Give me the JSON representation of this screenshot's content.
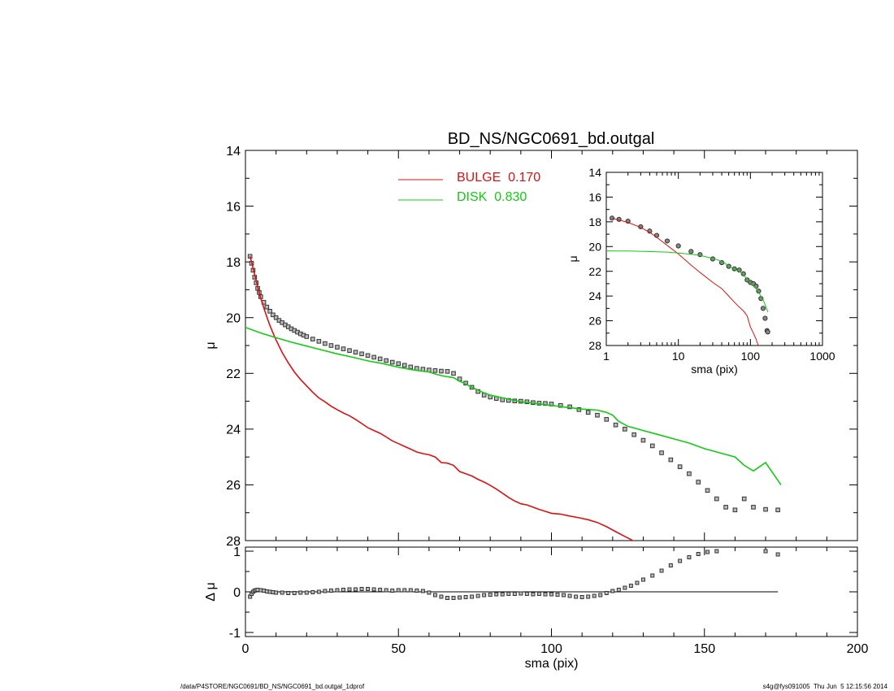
{
  "title": "BD_NS/NGC0691_bd.outgal",
  "footer": {
    "path": "/data/P4STORE/NGC0691/BD_NS/NGC0691_bd.outgal_1dprof",
    "stamp": "s4g@fys091005  Thu Jun  5 12:15:56 2014"
  },
  "colors": {
    "bulge": "#dd1111",
    "disk": "#11cc11",
    "data": "#333333",
    "axes": "#000000"
  },
  "chart_data": [
    {
      "id": "main",
      "type": "line",
      "xlabel": "",
      "ylabel": "μ",
      "xlim": [
        0,
        200
      ],
      "ylim": [
        28,
        14
      ],
      "xticks": [
        0,
        50,
        100,
        150,
        200
      ],
      "yticks": [
        14,
        16,
        18,
        20,
        22,
        24,
        26,
        28
      ],
      "legend": {
        "placement": "top-center",
        "entries": [
          {
            "label": "BULGE  0.170",
            "color": "#dd1111"
          },
          {
            "label": "DISK  0.830",
            "color": "#11cc11"
          }
        ]
      },
      "series": [
        {
          "name": "data",
          "style": "points",
          "x": [
            1.5,
            2,
            2.5,
            3,
            3.5,
            4,
            4.5,
            5,
            6,
            7,
            8,
            9,
            10,
            11,
            12,
            13,
            14,
            15,
            16,
            17,
            18,
            19,
            20,
            22,
            24,
            26,
            28,
            30,
            32,
            34,
            36,
            38,
            40,
            42,
            44,
            46,
            48,
            50,
            52,
            54,
            56,
            58,
            60,
            62,
            64,
            66,
            68,
            70,
            72,
            74,
            76,
            78,
            80,
            82,
            84,
            86,
            88,
            90,
            92,
            94,
            96,
            98,
            100,
            103,
            106,
            109,
            112,
            115,
            118,
            121,
            124,
            127,
            130,
            133,
            136,
            139,
            142,
            145,
            148,
            151,
            154,
            157,
            160,
            163,
            166,
            170,
            174
          ],
          "y": [
            17.8,
            18.05,
            18.3,
            18.55,
            18.75,
            18.95,
            19.1,
            19.25,
            19.45,
            19.62,
            19.77,
            19.9,
            20.0,
            20.1,
            20.18,
            20.26,
            20.33,
            20.4,
            20.46,
            20.52,
            20.58,
            20.63,
            20.68,
            20.77,
            20.85,
            20.93,
            21.0,
            21.06,
            21.12,
            21.18,
            21.24,
            21.3,
            21.36,
            21.42,
            21.48,
            21.54,
            21.6,
            21.65,
            21.71,
            21.77,
            21.82,
            21.85,
            21.88,
            21.9,
            21.92,
            21.93,
            22.0,
            22.2,
            22.35,
            22.5,
            22.65,
            22.78,
            22.85,
            22.9,
            22.95,
            22.97,
            22.99,
            23.0,
            23.02,
            23.05,
            23.07,
            23.08,
            23.1,
            23.15,
            23.2,
            23.3,
            23.4,
            23.5,
            23.65,
            23.85,
            24.0,
            24.2,
            24.4,
            24.6,
            24.85,
            25.1,
            25.35,
            25.6,
            25.9,
            26.2,
            26.5,
            26.8,
            26.9,
            26.5,
            26.8,
            26.88,
            26.9
          ]
        },
        {
          "name": "BULGE",
          "style": "line",
          "x": [
            1.5,
            2,
            3,
            4,
            5,
            6,
            7,
            8,
            9,
            10,
            12,
            14,
            16,
            18,
            20,
            22,
            24,
            26,
            28,
            30,
            32,
            34,
            36,
            38,
            40,
            42,
            44,
            46,
            48,
            50,
            52,
            54,
            56,
            58,
            60,
            62,
            64,
            66,
            68,
            70,
            72,
            74,
            76,
            78,
            80,
            82,
            84,
            86,
            88,
            90,
            92,
            94,
            96,
            98,
            100,
            103,
            106,
            109,
            112,
            115,
            118,
            121,
            124,
            127,
            130
          ],
          "y": [
            17.8,
            18.0,
            18.45,
            18.9,
            19.3,
            19.65,
            19.98,
            20.28,
            20.55,
            20.8,
            21.25,
            21.62,
            21.95,
            22.22,
            22.45,
            22.68,
            22.88,
            23.02,
            23.18,
            23.3,
            23.42,
            23.52,
            23.65,
            23.8,
            23.95,
            24.05,
            24.15,
            24.28,
            24.42,
            24.52,
            24.62,
            24.72,
            24.82,
            24.88,
            24.92,
            25.0,
            25.2,
            25.22,
            25.3,
            25.52,
            25.6,
            25.68,
            25.8,
            25.9,
            26.02,
            26.15,
            26.3,
            26.45,
            26.58,
            26.68,
            26.72,
            26.8,
            26.88,
            26.95,
            27.02,
            27.05,
            27.12,
            27.18,
            27.25,
            27.35,
            27.5,
            27.68,
            27.85,
            28.02,
            28.1
          ]
        },
        {
          "name": "DISK",
          "style": "line",
          "x": [
            0,
            5,
            10,
            15,
            20,
            25,
            30,
            35,
            40,
            45,
            50,
            55,
            60,
            62,
            64,
            66,
            68,
            70,
            72,
            74,
            76,
            78,
            80,
            85,
            90,
            95,
            100,
            105,
            110,
            115,
            118,
            120,
            122,
            125,
            130,
            135,
            140,
            145,
            150,
            155,
            160,
            163,
            166,
            170,
            175
          ],
          "y": [
            20.35,
            20.55,
            20.72,
            20.88,
            21.02,
            21.16,
            21.3,
            21.42,
            21.55,
            21.65,
            21.78,
            21.88,
            21.95,
            22.02,
            22.08,
            22.12,
            22.15,
            22.28,
            22.38,
            22.5,
            22.6,
            22.7,
            22.78,
            22.9,
            23.02,
            23.08,
            23.15,
            23.22,
            23.28,
            23.32,
            23.4,
            23.5,
            23.72,
            23.9,
            24.05,
            24.2,
            24.35,
            24.5,
            24.7,
            24.85,
            25.0,
            25.3,
            25.5,
            25.2,
            26.0
          ]
        }
      ]
    },
    {
      "id": "residual",
      "type": "scatter",
      "xlabel": "sma (pix)",
      "ylabel": "Δ μ",
      "xlim": [
        0,
        200
      ],
      "ylim": [
        -1.1,
        1.1
      ],
      "xticks": [
        0,
        50,
        100,
        150,
        200
      ],
      "yticks": [
        -1,
        0,
        1
      ],
      "reference_line": {
        "x": [
          0,
          174
        ],
        "y": 0
      },
      "series": [
        {
          "name": "residual",
          "style": "points",
          "x": [
            1.5,
            2,
            2.5,
            3,
            3.5,
            4,
            5,
            6,
            7,
            8,
            9,
            10,
            12,
            14,
            16,
            18,
            20,
            22,
            24,
            26,
            28,
            30,
            32,
            34,
            36,
            38,
            40,
            42,
            44,
            46,
            48,
            50,
            52,
            54,
            56,
            58,
            60,
            62,
            64,
            66,
            68,
            70,
            72,
            74,
            76,
            78,
            80,
            82,
            84,
            86,
            88,
            90,
            92,
            94,
            96,
            98,
            100,
            102,
            104,
            106,
            108,
            110,
            112,
            114,
            116,
            118,
            120,
            122,
            124,
            126,
            128,
            130,
            133,
            136,
            139,
            142,
            145,
            148,
            151,
            154,
            170,
            174
          ],
          "y": [
            -0.12,
            -0.05,
            0.0,
            0.03,
            0.04,
            0.05,
            0.04,
            0.03,
            0.01,
            0.0,
            -0.01,
            -0.02,
            -0.02,
            -0.03,
            -0.03,
            -0.02,
            -0.02,
            -0.01,
            0.0,
            0.02,
            0.03,
            0.04,
            0.05,
            0.06,
            0.06,
            0.07,
            0.07,
            0.06,
            0.05,
            0.04,
            0.03,
            0.04,
            0.04,
            0.04,
            0.03,
            0.02,
            -0.02,
            -0.08,
            -0.12,
            -0.15,
            -0.15,
            -0.14,
            -0.13,
            -0.12,
            -0.1,
            -0.08,
            -0.07,
            -0.06,
            -0.06,
            -0.05,
            -0.05,
            -0.04,
            -0.05,
            -0.06,
            -0.05,
            -0.06,
            -0.06,
            -0.07,
            -0.08,
            -0.1,
            -0.12,
            -0.13,
            -0.12,
            -0.1,
            -0.08,
            -0.03,
            0.02,
            0.05,
            0.1,
            0.15,
            0.22,
            0.3,
            0.4,
            0.52,
            0.65,
            0.76,
            0.85,
            0.93,
            0.98,
            1.0,
            1.0,
            0.92
          ]
        }
      ]
    },
    {
      "id": "inset",
      "type": "line",
      "xlabel": "sma (pix)",
      "ylabel": "μ",
      "xscale": "log",
      "xlim": [
        1,
        1000
      ],
      "ylim": [
        28,
        14
      ],
      "xticks": [
        1,
        10,
        100,
        1000
      ],
      "yticks": [
        14,
        16,
        18,
        20,
        22,
        24,
        26,
        28
      ],
      "series": [
        {
          "name": "data",
          "style": "points",
          "x": [
            1.2,
            1.5,
            2,
            3,
            4,
            5,
            7,
            10,
            15,
            20,
            30,
            40,
            50,
            60,
            70,
            80,
            90,
            100,
            110,
            120,
            130,
            140,
            150,
            160,
            170,
            174
          ],
          "y": [
            17.7,
            17.8,
            17.95,
            18.4,
            18.75,
            19.1,
            19.55,
            19.95,
            20.4,
            20.65,
            21.0,
            21.3,
            21.6,
            21.8,
            21.9,
            22.2,
            22.7,
            22.9,
            23.0,
            23.2,
            23.6,
            24.2,
            25.0,
            25.8,
            26.8,
            26.9
          ]
        },
        {
          "name": "BULGE",
          "style": "line",
          "x": [
            1.2,
            1.5,
            2,
            3,
            4,
            5,
            7,
            10,
            15,
            20,
            30,
            40,
            50,
            60,
            70,
            80,
            90,
            100,
            110,
            120,
            130
          ],
          "y": [
            17.7,
            17.85,
            18.05,
            18.45,
            18.85,
            19.25,
            19.9,
            20.6,
            21.5,
            22.1,
            22.9,
            23.4,
            24.0,
            24.5,
            24.9,
            25.2,
            25.6,
            26.5,
            27.0,
            27.5,
            28.1
          ]
        },
        {
          "name": "DISK",
          "style": "line",
          "x": [
            1,
            2,
            3,
            5,
            7,
            10,
            15,
            20,
            30,
            40,
            50,
            60,
            70,
            80,
            90,
            100,
            110,
            120,
            130,
            140,
            150,
            160,
            170,
            174
          ],
          "y": [
            20.35,
            20.36,
            20.38,
            20.42,
            20.45,
            20.52,
            20.62,
            20.72,
            20.95,
            21.2,
            21.55,
            21.85,
            22.0,
            22.3,
            22.6,
            22.9,
            23.2,
            23.4,
            23.7,
            24.0,
            24.3,
            24.7,
            25.1,
            25.3
          ]
        }
      ]
    }
  ]
}
